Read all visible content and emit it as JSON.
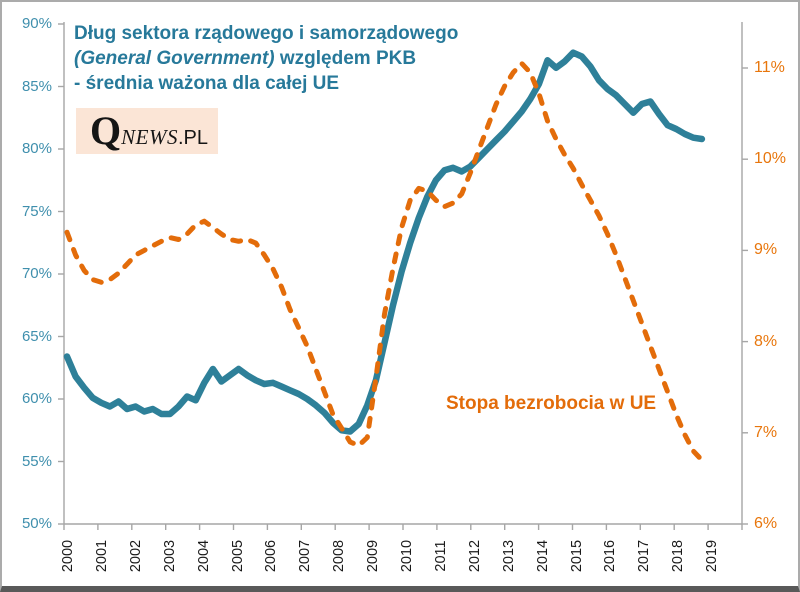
{
  "title": {
    "line1": "Dług sektora rządowego i samorządowego",
    "line2_italic": "(General Government)",
    "line2_rest": " względem PKB",
    "line3": "- średnia ważona dla całej UE"
  },
  "logo": {
    "q": "Q",
    "news": "NEWS",
    "pl": ".PL"
  },
  "series_label_unemployment": "Stopa bezrobocia w UE",
  "colors": {
    "debt_line": "#2E8099",
    "unemployment_line": "#E36C0A",
    "title_text": "#27799A",
    "left_axis_labels": "#3F8FAD",
    "right_axis_labels": "#E8760C",
    "x_axis_labels": "#1A1A1A",
    "axis_line": "#A6A6A6",
    "logo_bg": "#FBE5D6",
    "logo_text": "#151515"
  },
  "chart_data": {
    "type": "line",
    "title": "Dług sektora rządowego i samorządowego (General Government) względem PKB - średnia ważona dla całej UE",
    "annotation": "Stopa bezrobocia w UE",
    "x_unit": "quarter",
    "x_start": "2000Q1",
    "x_end": "2018Q3",
    "x_axis_year_labels": [
      "2000",
      "2001",
      "2002",
      "2003",
      "2004",
      "2005",
      "2006",
      "2007",
      "2008",
      "2009",
      "2010",
      "2011",
      "2012",
      "2013",
      "2014",
      "2015",
      "2016",
      "2017",
      "2018",
      "2019"
    ],
    "left_axis": {
      "min": 50,
      "max": 90,
      "step": 5,
      "tick_labels": [
        "50%",
        "55%",
        "60%",
        "65%",
        "70%",
        "75%",
        "80%",
        "85%",
        "90%"
      ]
    },
    "right_axis": {
      "min": 6,
      "max": 11,
      "step": 1,
      "tick_labels": [
        "6%",
        "7%",
        "8%",
        "9%",
        "10%",
        "11%"
      ]
    },
    "grid": false,
    "legend": "none",
    "series": [
      {
        "name": "Dług sektora rządowego i samorządowego względem PKB (lewa oś, % PKB)",
        "axis": "left",
        "style": "solid",
        "color": "#2E8099",
        "values": [
          63.4,
          61.8,
          60.9,
          60.1,
          59.7,
          59.4,
          59.8,
          59.2,
          59.4,
          59.0,
          59.2,
          58.8,
          58.8,
          59.4,
          60.2,
          59.9,
          61.3,
          62.4,
          61.4,
          61.9,
          62.4,
          61.9,
          61.5,
          61.2,
          61.3,
          61.0,
          60.7,
          60.4,
          60.0,
          59.5,
          58.9,
          58.1,
          57.5,
          57.4,
          58.0,
          59.5,
          61.5,
          64.5,
          67.5,
          70.2,
          72.5,
          74.5,
          76.2,
          77.5,
          78.3,
          78.5,
          78.2,
          78.6,
          79.3,
          80.0,
          80.7,
          81.4,
          82.2,
          83.0,
          84.0,
          85.2,
          87.1,
          86.5,
          87.0,
          87.7,
          87.4,
          86.6,
          85.5,
          84.8,
          84.3,
          83.6,
          82.9,
          83.6,
          83.8,
          82.8,
          81.9,
          81.6,
          81.2,
          80.9,
          80.8
        ]
      },
      {
        "name": "Stopa bezrobocia w UE (prawa oś, %)",
        "axis": "right",
        "style": "dashed",
        "color": "#E36C0A",
        "values": [
          9.2,
          8.95,
          8.78,
          8.68,
          8.65,
          8.68,
          8.75,
          8.85,
          8.95,
          9.0,
          9.05,
          9.1,
          9.14,
          9.12,
          9.18,
          9.28,
          9.32,
          9.25,
          9.18,
          9.12,
          9.1,
          9.12,
          9.08,
          8.95,
          8.8,
          8.6,
          8.35,
          8.15,
          7.95,
          7.7,
          7.45,
          7.2,
          7.05,
          6.9,
          6.86,
          6.95,
          7.6,
          8.3,
          8.8,
          9.25,
          9.55,
          9.68,
          9.65,
          9.55,
          9.48,
          9.52,
          9.62,
          9.85,
          10.1,
          10.35,
          10.6,
          10.8,
          10.95,
          11.05,
          10.95,
          10.72,
          10.42,
          10.22,
          10.05,
          9.9,
          9.72,
          9.55,
          9.38,
          9.18,
          8.95,
          8.7,
          8.45,
          8.2,
          7.95,
          7.7,
          7.45,
          7.2,
          6.98,
          6.8,
          6.7
        ]
      }
    ]
  }
}
